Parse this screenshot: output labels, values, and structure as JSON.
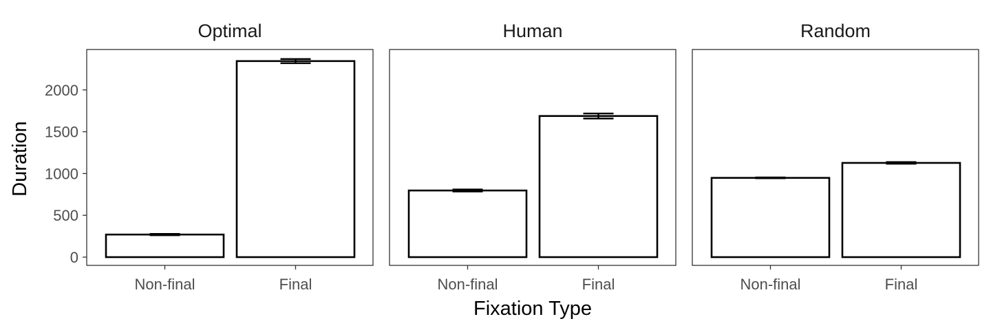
{
  "chart_data": {
    "type": "bar",
    "xlabel": "Fixation Type",
    "ylabel": "Duration",
    "ylim": [
      0,
      2480
    ],
    "y_ticks": [
      0,
      500,
      1000,
      1500,
      2000
    ],
    "categories": [
      "Non-final",
      "Final"
    ],
    "facet_labels": [
      "Optimal",
      "Human",
      "Random"
    ],
    "facets": [
      {
        "title": "Optimal",
        "values": [
          270,
          2345
        ],
        "errors": [
          8,
          25
        ]
      },
      {
        "title": "Human",
        "values": [
          797,
          1688
        ],
        "errors": [
          12,
          30
        ]
      },
      {
        "title": "Random",
        "values": [
          948,
          1127
        ],
        "errors": [
          5,
          10
        ]
      }
    ],
    "colors": {
      "bar_fill": "#ffffff",
      "bar_outline": "#000000",
      "panel_border": "#333333",
      "tick_text": "#4d4d4d"
    },
    "grid": false
  }
}
